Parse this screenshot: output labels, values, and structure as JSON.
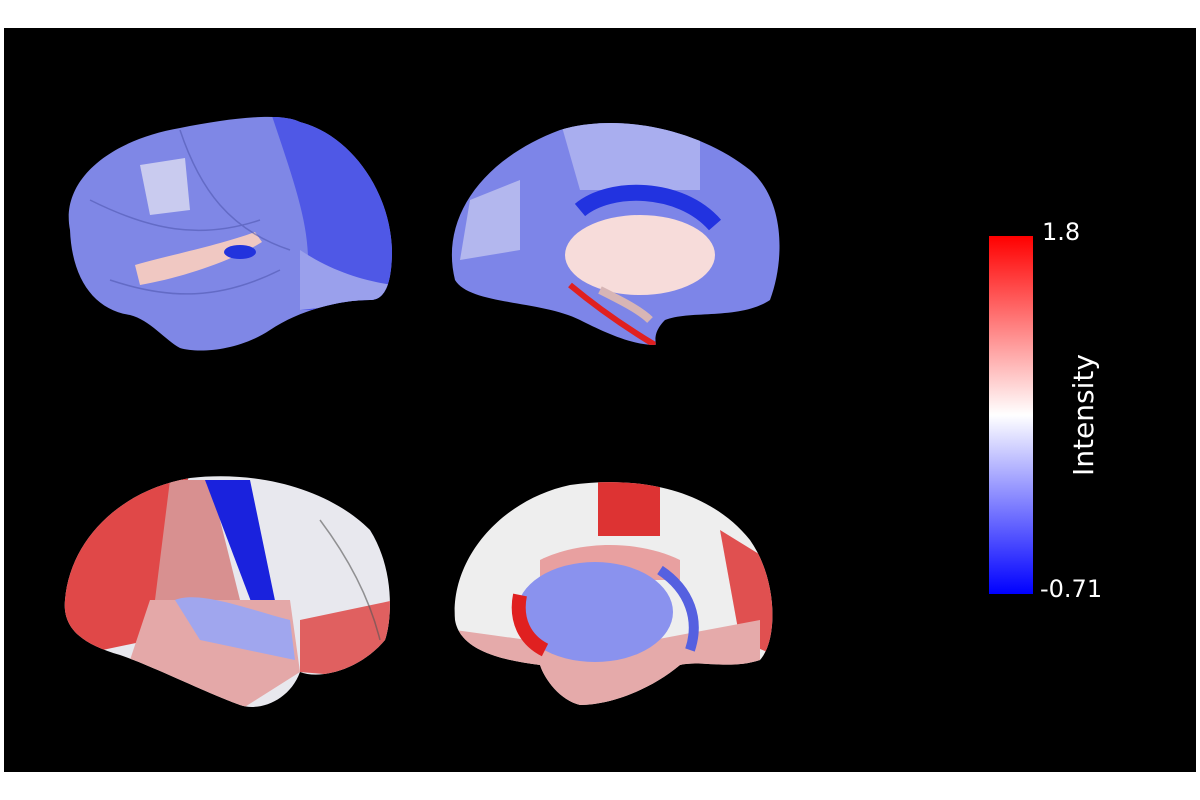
{
  "colorbar": {
    "title": "Intensity",
    "max": 1.8,
    "min": -0.71
  }
}
